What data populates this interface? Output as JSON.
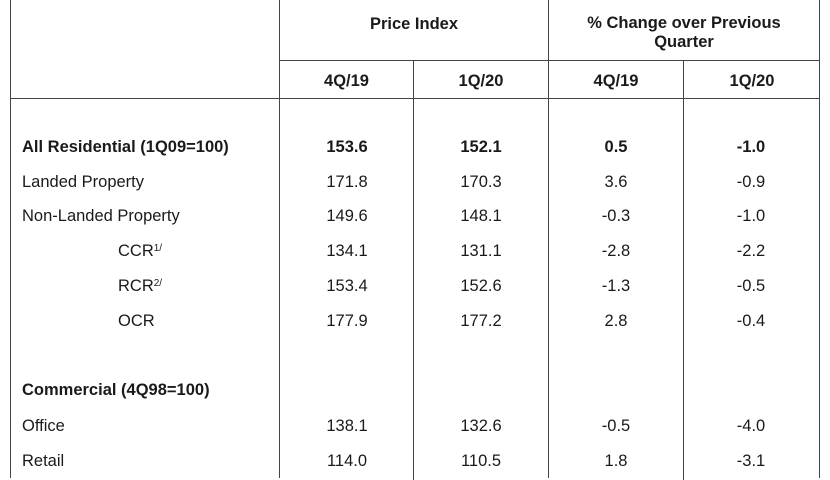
{
  "header": {
    "price_index": "Price Index",
    "pct_change": "% Change over Previous Quarter",
    "sub": [
      "4Q/19",
      "1Q/20",
      "4Q/19",
      "1Q/20"
    ]
  },
  "rows": [
    {
      "label": "All Residential (1Q09=100)",
      "sup": "",
      "values": [
        "153.6",
        "152.1",
        "0.5",
        "-1.0"
      ],
      "bold": true,
      "indent": false
    },
    {
      "label": "Landed Property",
      "sup": "",
      "values": [
        "171.8",
        "170.3",
        "3.6",
        "-0.9"
      ],
      "bold": false,
      "indent": false
    },
    {
      "label": "Non-Landed Property",
      "sup": "",
      "values": [
        "149.6",
        "148.1",
        "-0.3",
        "-1.0"
      ],
      "bold": false,
      "indent": false
    },
    {
      "label": "CCR",
      "sup": "1/",
      "values": [
        "134.1",
        "131.1",
        "-2.8",
        "-2.2"
      ],
      "bold": false,
      "indent": true
    },
    {
      "label": "RCR",
      "sup": "2/",
      "values": [
        "153.4",
        "152.6",
        "-1.3",
        "-0.5"
      ],
      "bold": false,
      "indent": true
    },
    {
      "label": "OCR",
      "sup": "",
      "values": [
        "177.9",
        "177.2",
        "2.8",
        "-0.4"
      ],
      "bold": false,
      "indent": true
    },
    {
      "label": "Commercial (4Q98=100)",
      "sup": "",
      "values": [
        "",
        "",
        "",
        ""
      ],
      "bold": true,
      "indent": false
    },
    {
      "label": "Office",
      "sup": "",
      "values": [
        "138.1",
        "132.6",
        "-0.5",
        "-4.0"
      ],
      "bold": false,
      "indent": false
    },
    {
      "label": "Retail",
      "sup": "",
      "values": [
        "114.0",
        "110.5",
        "1.8",
        "-3.1"
      ],
      "bold": false,
      "indent": false
    }
  ]
}
